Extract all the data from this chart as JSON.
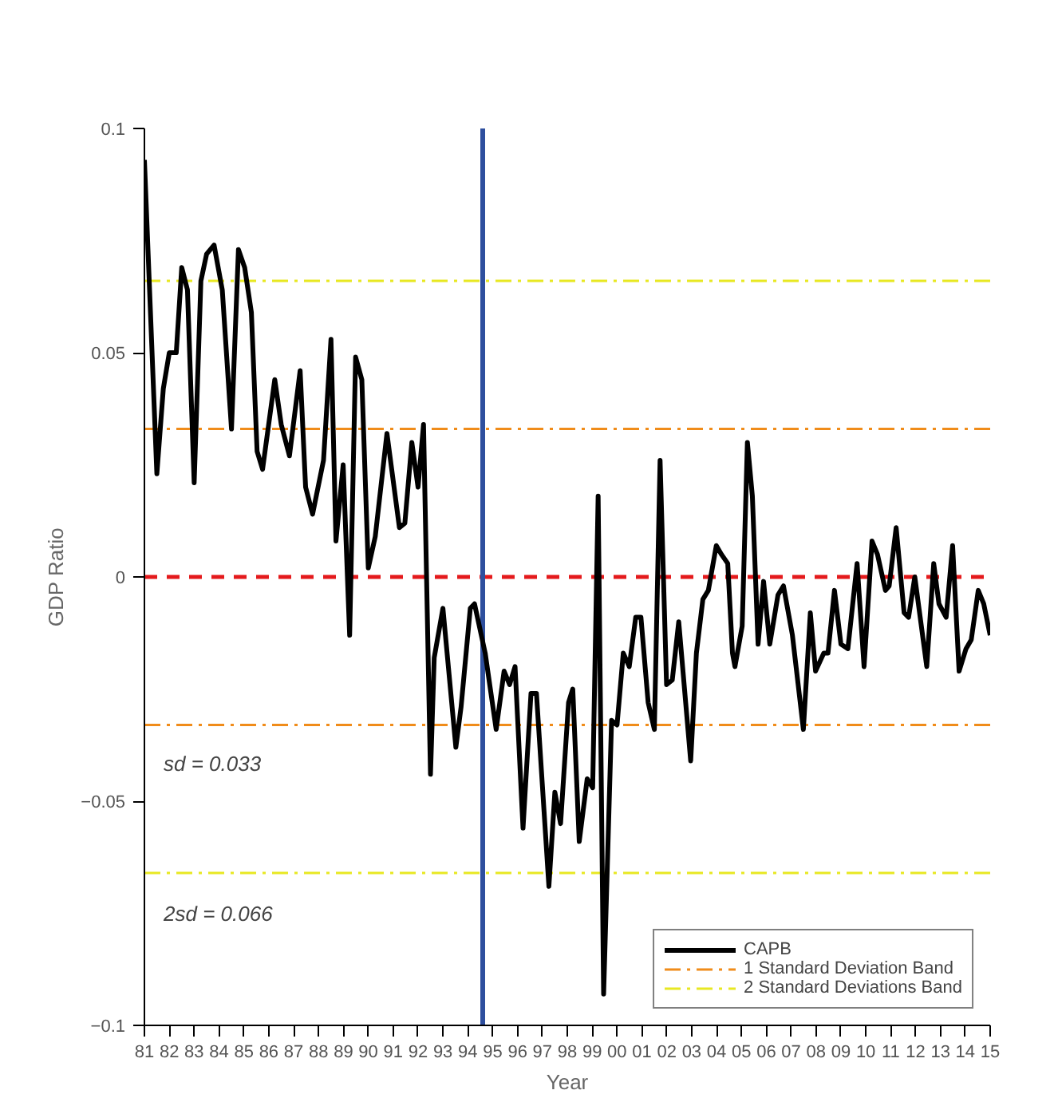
{
  "chart_data": {
    "type": "line",
    "xlabel": "Year",
    "ylabel": "GDP Ratio",
    "x": [
      1981.0,
      1981.5,
      1981.76,
      1982.0,
      1982.28,
      1982.5,
      1982.73,
      1983.0,
      1983.27,
      1983.5,
      1983.8,
      1984.13,
      1984.5,
      1984.78,
      1985.03,
      1985.3,
      1985.53,
      1985.75,
      1986.24,
      1986.5,
      1986.83,
      1987.26,
      1987.48,
      1987.76,
      1988.2,
      1988.5,
      1988.7,
      1988.99,
      1989.25,
      1989.49,
      1989.74,
      1990.0,
      1990.28,
      1990.75,
      1991.25,
      1991.47,
      1991.75,
      1992.0,
      1992.22,
      1992.5,
      1992.65,
      1993.0,
      1993.52,
      1993.73,
      1994.1,
      1994.27,
      1994.7,
      1995.14,
      1995.46,
      1995.68,
      1995.9,
      1996.22,
      1996.54,
      1996.76,
      1997.26,
      1997.5,
      1997.73,
      1998.05,
      1998.22,
      1998.48,
      1998.8,
      1999.02,
      1999.24,
      1999.46,
      1999.78,
      2000.0,
      2000.25,
      2000.49,
      2000.75,
      2000.96,
      2001.25,
      2001.5,
      2001.73,
      2001.99,
      2002.22,
      2002.48,
      2002.96,
      2003.19,
      2003.45,
      2003.67,
      2003.99,
      2004.2,
      2004.45,
      2004.64,
      2004.74,
      2005.03,
      2005.24,
      2005.44,
      2005.67,
      2005.89,
      2006.14,
      2006.47,
      2006.69,
      2007.05,
      2007.49,
      2007.77,
      2007.98,
      2008.31,
      2008.48,
      2008.74,
      2009.0,
      2009.28,
      2009.65,
      2009.93,
      2010.25,
      2010.47,
      2010.79,
      2010.94,
      2011.22,
      2011.54,
      2011.72,
      2011.97,
      2012.45,
      2012.73,
      2012.94,
      2013.23,
      2013.49,
      2013.75,
      2014.03,
      2014.24,
      2014.52,
      2014.74,
      2015.0
    ],
    "series": [
      {
        "name": "CAPB",
        "color": "#000000",
        "values": [
          0.093,
          0.023,
          0.042,
          0.05,
          0.05,
          0.069,
          0.064,
          0.021,
          0.066,
          0.072,
          0.074,
          0.064,
          0.033,
          0.073,
          0.069,
          0.059,
          0.028,
          0.024,
          0.044,
          0.034,
          0.027,
          0.046,
          0.02,
          0.014,
          0.026,
          0.053,
          0.008,
          0.025,
          -0.013,
          0.049,
          0.044,
          0.002,
          0.009,
          0.032,
          0.011,
          0.012,
          0.03,
          0.02,
          0.034,
          -0.044,
          -0.018,
          -0.007,
          -0.038,
          -0.029,
          -0.007,
          -0.006,
          -0.017,
          -0.034,
          -0.021,
          -0.024,
          -0.02,
          -0.056,
          -0.026,
          -0.026,
          -0.069,
          -0.048,
          -0.055,
          -0.028,
          -0.025,
          -0.059,
          -0.045,
          -0.047,
          0.018,
          -0.093,
          -0.032,
          -0.033,
          -0.017,
          -0.02,
          -0.009,
          -0.009,
          -0.028,
          -0.034,
          0.026,
          -0.024,
          -0.023,
          -0.01,
          -0.041,
          -0.017,
          -0.005,
          -0.003,
          0.007,
          0.005,
          0.003,
          -0.017,
          -0.02,
          -0.011,
          0.03,
          0.018,
          -0.015,
          -0.001,
          -0.015,
          -0.004,
          -0.002,
          -0.013,
          -0.034,
          -0.008,
          -0.021,
          -0.017,
          -0.017,
          -0.003,
          -0.015,
          -0.016,
          0.003,
          -0.02,
          0.008,
          0.005,
          -0.003,
          -0.002,
          0.011,
          -0.008,
          -0.009,
          0.0,
          -0.02,
          0.003,
          -0.006,
          -0.009,
          0.007,
          -0.021,
          -0.016,
          -0.014,
          -0.003,
          -0.006,
          -0.013
        ]
      }
    ],
    "xlim": [
      1981,
      2015
    ],
    "ylim": [
      -0.1,
      0.1
    ],
    "xticks": [
      {
        "value": 1981,
        "label": "81"
      },
      {
        "value": 1982,
        "label": "82"
      },
      {
        "value": 1983,
        "label": "83"
      },
      {
        "value": 1984,
        "label": "84"
      },
      {
        "value": 1985,
        "label": "85"
      },
      {
        "value": 1986,
        "label": "86"
      },
      {
        "value": 1987,
        "label": "87"
      },
      {
        "value": 1988,
        "label": "88"
      },
      {
        "value": 1989,
        "label": "89"
      },
      {
        "value": 1990,
        "label": "90"
      },
      {
        "value": 1991,
        "label": "91"
      },
      {
        "value": 1992,
        "label": "92"
      },
      {
        "value": 1993,
        "label": "93"
      },
      {
        "value": 1994,
        "label": "94"
      },
      {
        "value": 1995,
        "label": "95"
      },
      {
        "value": 1996,
        "label": "96"
      },
      {
        "value": 1997,
        "label": "97"
      },
      {
        "value": 1998,
        "label": "98"
      },
      {
        "value": 1999,
        "label": "99"
      },
      {
        "value": 2000,
        "label": "00"
      },
      {
        "value": 2001,
        "label": "01"
      },
      {
        "value": 2002,
        "label": "02"
      },
      {
        "value": 2003,
        "label": "03"
      },
      {
        "value": 2004,
        "label": "04"
      },
      {
        "value": 2005,
        "label": "05"
      },
      {
        "value": 2006,
        "label": "06"
      },
      {
        "value": 2007,
        "label": "07"
      },
      {
        "value": 2008,
        "label": "08"
      },
      {
        "value": 2009,
        "label": "09"
      },
      {
        "value": 2010,
        "label": "10"
      },
      {
        "value": 2011,
        "label": "11"
      },
      {
        "value": 2012,
        "label": "12"
      },
      {
        "value": 2013,
        "label": "13"
      },
      {
        "value": 2014,
        "label": "14"
      },
      {
        "value": 2015,
        "label": "15"
      }
    ],
    "yticks": [
      -0.1,
      -0.05,
      0,
      0.05,
      0.1
    ],
    "ref_lines": [
      {
        "axis": "y",
        "value": 0,
        "color": "#e41a1c",
        "line_style": "dashed"
      },
      {
        "axis": "y",
        "value": 0.033,
        "label": "1 Standard Deviation Band",
        "color": "#f08c1a",
        "line_style": "dashdot"
      },
      {
        "axis": "y",
        "value": -0.033,
        "color": "#f08c1a",
        "line_style": "dashdot"
      },
      {
        "axis": "y",
        "value": 0.066,
        "label": "2 Standard Deviations Band",
        "color": "#e8e822",
        "line_style": "dashdot"
      },
      {
        "axis": "y",
        "value": -0.066,
        "color": "#e8e822",
        "line_style": "dashdot"
      },
      {
        "axis": "x",
        "value": 1994.6,
        "color": "#2e4f9e",
        "line_style": "solid"
      }
    ],
    "annotations": [
      "sd = 0.033",
      "2sd = 0.066"
    ],
    "legend": "bottom right",
    "grid": false
  }
}
